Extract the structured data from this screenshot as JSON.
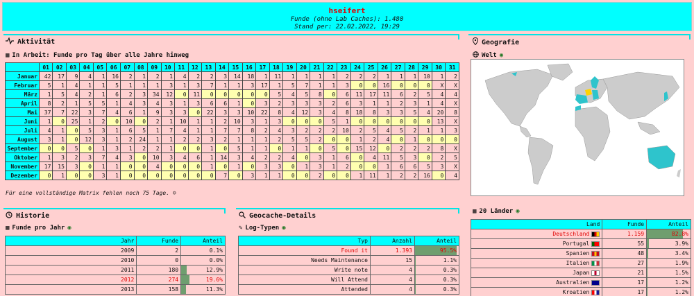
{
  "header": {
    "name": "hseifert",
    "finds": "Funde (ohne Lab Caches): 1.480",
    "stand": "Stand per: 22.02.2022, 19:29"
  },
  "aktivitaet": {
    "title": "Aktivität",
    "matrix_title": "In Arbeit: Funde pro Tag über alle Jahre hinweg",
    "days": [
      "01",
      "02",
      "03",
      "04",
      "05",
      "06",
      "07",
      "08",
      "09",
      "10",
      "11",
      "12",
      "13",
      "14",
      "15",
      "16",
      "17",
      "18",
      "19",
      "20",
      "21",
      "22",
      "23",
      "24",
      "25",
      "26",
      "27",
      "28",
      "29",
      "30",
      "31"
    ],
    "rows": [
      {
        "month": "Januar",
        "vals": [
          "42",
          "17",
          "9",
          "4",
          "1",
          "16",
          "2",
          "1",
          "2",
          "1",
          "4",
          "2",
          "2",
          "3",
          "14",
          "18",
          "1",
          "11",
          "1",
          "1",
          "1",
          "1",
          "2",
          "2",
          "2",
          "1",
          "1",
          "1",
          "10",
          "1",
          "2"
        ]
      },
      {
        "month": "Februar",
        "vals": [
          "5",
          "1",
          "4",
          "1",
          "1",
          "5",
          "1",
          "1",
          "1",
          "3",
          "1",
          "3",
          "7",
          "1",
          "1",
          "3",
          "17",
          "1",
          "5",
          "7",
          "1",
          "1",
          "3",
          "0",
          "0",
          "16",
          "0",
          "0",
          "0",
          "X",
          "X"
        ]
      },
      {
        "month": "März",
        "vals": [
          "1",
          "5",
          "4",
          "2",
          "1",
          "6",
          "2",
          "3",
          "34",
          "12",
          "0",
          "11",
          "0",
          "0",
          "0",
          "0",
          "0",
          "5",
          "4",
          "5",
          "8",
          "0",
          "6",
          "11",
          "17",
          "11",
          "6",
          "2",
          "5",
          "4",
          "4"
        ]
      },
      {
        "month": "April",
        "vals": [
          "8",
          "2",
          "1",
          "5",
          "5",
          "1",
          "4",
          "3",
          "4",
          "3",
          "1",
          "3",
          "6",
          "6",
          "1",
          "0",
          "3",
          "2",
          "3",
          "3",
          "3",
          "2",
          "6",
          "3",
          "1",
          "1",
          "2",
          "3",
          "1",
          "4",
          "X"
        ]
      },
      {
        "month": "Mai",
        "vals": [
          "37",
          "7",
          "22",
          "3",
          "7",
          "4",
          "6",
          "1",
          "9",
          "3",
          "3",
          "0",
          "22",
          "3",
          "3",
          "10",
          "22",
          "8",
          "4",
          "12",
          "3",
          "4",
          "8",
          "18",
          "8",
          "3",
          "3",
          "5",
          "4",
          "20",
          "8"
        ]
      },
      {
        "month": "Juni",
        "vals": [
          "1",
          "0",
          "25",
          "1",
          "2",
          "0",
          "10",
          "0",
          "2",
          "1",
          "10",
          "1",
          "1",
          "2",
          "10",
          "3",
          "1",
          "3",
          "0",
          "0",
          "0",
          "5",
          "1",
          "0",
          "0",
          "0",
          "0",
          "0",
          "0",
          "13",
          "X"
        ]
      },
      {
        "month": "Juli",
        "vals": [
          "4",
          "1",
          "0",
          "5",
          "3",
          "1",
          "6",
          "5",
          "1",
          "7",
          "4",
          "1",
          "1",
          "7",
          "7",
          "8",
          "2",
          "4",
          "3",
          "2",
          "2",
          "2",
          "10",
          "2",
          "5",
          "4",
          "5",
          "2",
          "1",
          "1",
          "3"
        ]
      },
      {
        "month": "August",
        "vals": [
          "3",
          "1",
          "0",
          "12",
          "3",
          "1",
          "2",
          "24",
          "1",
          "1",
          "2",
          "2",
          "3",
          "2",
          "1",
          "1",
          "1",
          "2",
          "5",
          "5",
          "2",
          "0",
          "0",
          "1",
          "2",
          "4",
          "0",
          "1",
          "0",
          "0",
          "0"
        ]
      },
      {
        "month": "September",
        "vals": [
          "0",
          "0",
          "5",
          "0",
          "1",
          "3",
          "1",
          "2",
          "2",
          "1",
          "0",
          "0",
          "1",
          "0",
          "5",
          "1",
          "1",
          "0",
          "1",
          "1",
          "0",
          "5",
          "0",
          "15",
          "12",
          "0",
          "2",
          "2",
          "2",
          "8",
          "X"
        ]
      },
      {
        "month": "Oktober",
        "vals": [
          "1",
          "3",
          "2",
          "3",
          "7",
          "4",
          "3",
          "0",
          "10",
          "3",
          "4",
          "6",
          "1",
          "14",
          "3",
          "4",
          "2",
          "2",
          "4",
          "0",
          "3",
          "1",
          "6",
          "0",
          "4",
          "11",
          "5",
          "3",
          "0",
          "2",
          "5"
        ]
      },
      {
        "month": "November",
        "vals": [
          "17",
          "15",
          "3",
          "0",
          "1",
          "1",
          "0",
          "0",
          "4",
          "0",
          "0",
          "0",
          "1",
          "0",
          "1",
          "0",
          "3",
          "3",
          "0",
          "1",
          "3",
          "1",
          "2",
          "0",
          "0",
          "1",
          "6",
          "6",
          "5",
          "3",
          "X"
        ]
      },
      {
        "month": "Dezember",
        "vals": [
          "0",
          "1",
          "0",
          "0",
          "3",
          "1",
          "0",
          "0",
          "0",
          "0",
          "0",
          "0",
          "0",
          "7",
          "0",
          "3",
          "1",
          "1",
          "0",
          "0",
          "2",
          "0",
          "0",
          "1",
          "11",
          "1",
          "2",
          "2",
          "16",
          "0",
          "4"
        ]
      }
    ],
    "note": "Für eine vollständige Matrix fehlen noch 75 Tage. ☺"
  },
  "historie": {
    "title": "Historie",
    "sub": "Funde pro Jahr",
    "headers": [
      "Jahr",
      "Funde",
      "Anteil"
    ],
    "rows": [
      {
        "jahr": "2009",
        "funde": "2",
        "anteil": "0.1%",
        "pct": 0.1,
        "hl": false
      },
      {
        "jahr": "2010",
        "funde": "0",
        "anteil": "0.0%",
        "pct": 0,
        "hl": false
      },
      {
        "jahr": "2011",
        "funde": "180",
        "anteil": "12.9%",
        "pct": 12.9,
        "hl": false
      },
      {
        "jahr": "2012",
        "funde": "274",
        "anteil": "19.6%",
        "pct": 19.6,
        "hl": true
      },
      {
        "jahr": "2013",
        "funde": "158",
        "anteil": "11.3%",
        "pct": 11.3,
        "hl": false
      }
    ]
  },
  "geocache": {
    "title": "Geocache-Details",
    "sub": "Log-Typen",
    "headers": [
      "Typ",
      "Anzahl",
      "Anteil"
    ],
    "rows": [
      {
        "typ": "Found it",
        "anzahl": "1.393",
        "anteil": "95.5%",
        "pct": 95.5,
        "hl": true
      },
      {
        "typ": "Needs Maintenance",
        "anzahl": "15",
        "anteil": "1.1%",
        "pct": 1.1,
        "hl": false
      },
      {
        "typ": "Write note",
        "anzahl": "4",
        "anteil": "0.3%",
        "pct": 0.3,
        "hl": false
      },
      {
        "typ": "Will Attend",
        "anzahl": "4",
        "anteil": "0.3%",
        "pct": 0.3,
        "hl": false
      },
      {
        "typ": "Attended",
        "anzahl": "4",
        "anteil": "0.3%",
        "pct": 0.3,
        "hl": false
      }
    ]
  },
  "geografie": {
    "title": "Geografie",
    "map_title": "Welt",
    "laender_title": "20 Länder",
    "headers": [
      "Land",
      "Funde",
      "Anteil"
    ],
    "rows": [
      {
        "land": "Deutschland",
        "funde": "1.159",
        "anteil": "82.8%",
        "pct": 82.8,
        "hl": true,
        "flag": [
          "#000000",
          "#dd0000",
          "#ffce00"
        ]
      },
      {
        "land": "Portugal",
        "funde": "55",
        "anteil": "3.9%",
        "pct": 3.9,
        "hl": false,
        "flag": [
          "#006600",
          "#ff0000",
          "#ff0000"
        ]
      },
      {
        "land": "Spanien",
        "funde": "48",
        "anteil": "3.4%",
        "pct": 3.4,
        "hl": false,
        "flag": [
          "#c60b1e",
          "#ffc400",
          "#c60b1e"
        ]
      },
      {
        "land": "Italien",
        "funde": "27",
        "anteil": "1.9%",
        "pct": 1.9,
        "hl": false,
        "flag": [
          "#009246",
          "#ffffff",
          "#ce2b37"
        ]
      },
      {
        "land": "Japan",
        "funde": "21",
        "anteil": "1.5%",
        "pct": 1.5,
        "hl": false,
        "flag": [
          "#ffffff",
          "#bc002d",
          "#ffffff"
        ]
      },
      {
        "land": "Australien",
        "funde": "17",
        "anteil": "1.2%",
        "pct": 1.2,
        "hl": false,
        "flag": [
          "#00008b",
          "#00008b",
          "#00008b"
        ]
      },
      {
        "land": "Kroatien",
        "funde": "17",
        "anteil": "1.2%",
        "pct": 1.2,
        "hl": false,
        "flag": [
          "#ff0000",
          "#ffffff",
          "#171796"
        ]
      }
    ]
  },
  "colors": {
    "accent": "#00ffff",
    "background": "#ffd0d0",
    "highlight_text": "#e00000",
    "zero_cell": "#ffffb0",
    "bar": "#6f9e6f"
  }
}
